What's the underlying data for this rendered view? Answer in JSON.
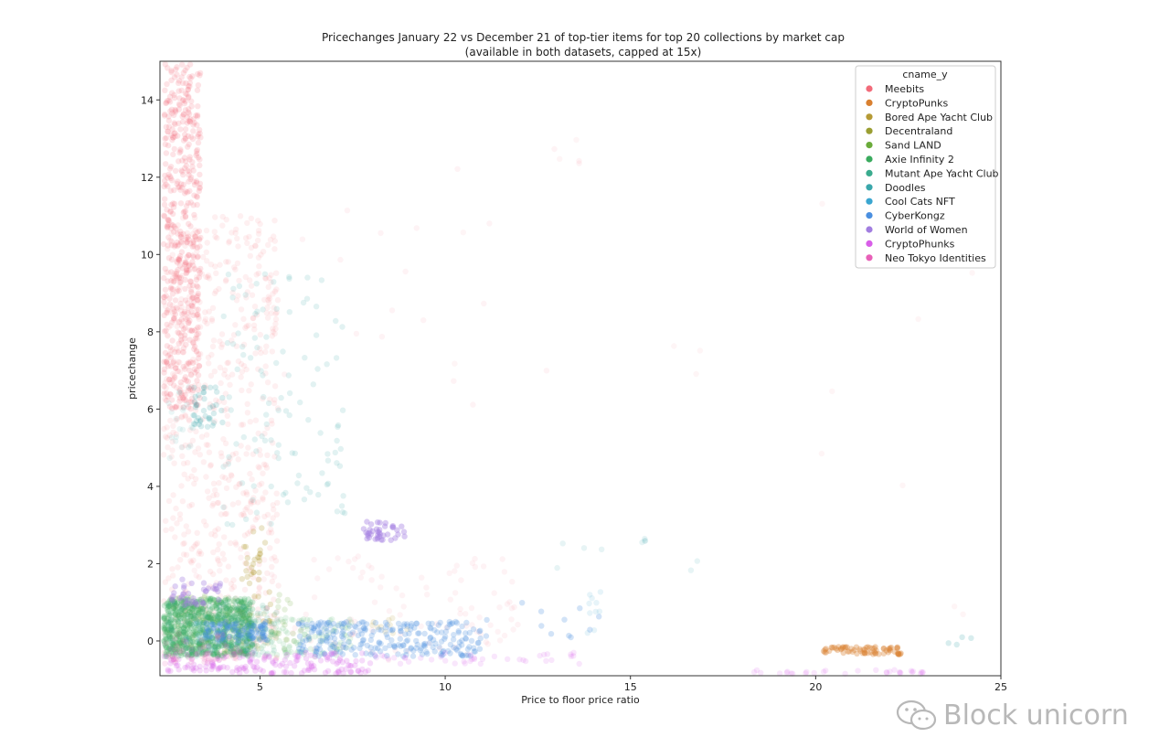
{
  "chart_data": {
    "type": "scatter",
    "title": "Pricechanges January 22 vs December 21 of top-tier items for top 20 collections by market cap",
    "subtitle": "(available in both datasets, capped at 15x)",
    "xlabel": "Price to floor price ratio",
    "ylabel": "pricechange",
    "xlim": [
      2.3,
      25
    ],
    "ylim": [
      -0.9,
      15
    ],
    "xticks": [
      5,
      10,
      15,
      20,
      25
    ],
    "yticks": [
      0,
      2,
      4,
      6,
      8,
      10,
      12,
      14
    ],
    "grid": false,
    "legend": {
      "title": "cname_y",
      "placement": "top-right"
    },
    "series": [
      {
        "name": "Meebits",
        "color": "#f26b7a",
        "clusters": [
          {
            "x": [
              2.4,
              3.4
            ],
            "y": [
              6,
              15
            ],
            "n": 520,
            "a": 0.18
          },
          {
            "x": [
              2.4,
              5.5
            ],
            "y": [
              -0.5,
              11
            ],
            "n": 650,
            "a": 0.1
          },
          {
            "x": [
              3.0,
              12
            ],
            "y": [
              -0.5,
              2.2
            ],
            "n": 120,
            "a": 0.08
          },
          {
            "x": [
              5,
              14
            ],
            "y": [
              6,
              13
            ],
            "n": 20,
            "a": 0.08
          },
          {
            "x": [
              10,
              25
            ],
            "y": [
              -0.5,
              15
            ],
            "n": 16,
            "a": 0.07
          }
        ]
      },
      {
        "name": "CryptoPunks",
        "color": "#d98030",
        "clusters": [
          {
            "x": [
              20.2,
              22.3
            ],
            "y": [
              -0.35,
              -0.15
            ],
            "n": 70,
            "a": 0.35
          }
        ]
      },
      {
        "name": "Bored Ape Yacht Club",
        "color": "#b59a35",
        "clusters": [
          {
            "x": [
              4.5,
              5.3
            ],
            "y": [
              0.5,
              3.1
            ],
            "n": 35,
            "a": 0.25
          },
          {
            "x": [
              8.0,
              9.0
            ],
            "y": [
              0.2,
              0.6
            ],
            "n": 10,
            "a": 0.15
          }
        ]
      },
      {
        "name": "Decentraland",
        "color": "#9a9e32",
        "clusters": [
          {
            "x": [
              2.5,
              5.5
            ],
            "y": [
              -0.3,
              0.8
            ],
            "n": 60,
            "a": 0.15
          }
        ]
      },
      {
        "name": "Sand LAND",
        "color": "#6aab3a",
        "clusters": [
          {
            "x": [
              2.5,
              6.0
            ],
            "y": [
              -0.3,
              1.2
            ],
            "n": 80,
            "a": 0.16
          }
        ]
      },
      {
        "name": "Axie Infinity 2",
        "color": "#3aab5e",
        "clusters": [
          {
            "x": [
              2.4,
              4.8
            ],
            "y": [
              -0.4,
              1.1
            ],
            "n": 800,
            "a": 0.22
          },
          {
            "x": [
              4.5,
              7.5
            ],
            "y": [
              -0.4,
              0.6
            ],
            "n": 120,
            "a": 0.12
          }
        ]
      },
      {
        "name": "Mutant Ape Yacht Club",
        "color": "#3aab8e",
        "clusters": [
          {
            "x": [
              2.5,
              5.5
            ],
            "y": [
              -0.4,
              1.0
            ],
            "n": 140,
            "a": 0.15
          }
        ]
      },
      {
        "name": "Doodles",
        "color": "#3aa7ab",
        "clusters": [
          {
            "x": [
              4.0,
              7.3
            ],
            "y": [
              3.0,
              9.5
            ],
            "n": 110,
            "a": 0.15
          },
          {
            "x": [
              3.2,
              4.0
            ],
            "y": [
              5.5,
              6.6
            ],
            "n": 40,
            "a": 0.2
          },
          {
            "x": [
              2.5,
              3.2
            ],
            "y": [
              4.5,
              6.6
            ],
            "n": 20,
            "a": 0.1
          },
          {
            "x": [
              13,
              17
            ],
            "y": [
              1.5,
              3.0
            ],
            "n": 10,
            "a": 0.12
          },
          {
            "x": [
              23.5,
              24.3
            ],
            "y": [
              -0.1,
              0.1
            ],
            "n": 4,
            "a": 0.2
          }
        ]
      },
      {
        "name": "Cool Cats NFT",
        "color": "#3aa6d0",
        "clusters": [
          {
            "x": [
              3.0,
              5.0
            ],
            "y": [
              -0.3,
              0.5
            ],
            "n": 60,
            "a": 0.14
          },
          {
            "x": [
              13.8,
              14.2
            ],
            "y": [
              0.2,
              1.6
            ],
            "n": 10,
            "a": 0.12
          }
        ]
      },
      {
        "name": "CyberKongz",
        "color": "#4a8fe0",
        "clusters": [
          {
            "x": [
              3.5,
              5.2
            ],
            "y": [
              0.0,
              0.5
            ],
            "n": 80,
            "a": 0.3
          },
          {
            "x": [
              6.0,
              11.0
            ],
            "y": [
              -0.4,
              0.5
            ],
            "n": 260,
            "a": 0.25
          },
          {
            "x": [
              11.0,
              14.2
            ],
            "y": [
              0.0,
              1.0
            ],
            "n": 12,
            "a": 0.25
          }
        ]
      },
      {
        "name": "World of Women",
        "color": "#a27ee0",
        "clusters": [
          {
            "x": [
              7.8,
              9.0
            ],
            "y": [
              2.6,
              3.1
            ],
            "n": 40,
            "a": 0.4
          },
          {
            "x": [
              2.6,
              4.0
            ],
            "y": [
              0.9,
              1.6
            ],
            "n": 40,
            "a": 0.35
          }
        ]
      },
      {
        "name": "CryptoPhunks",
        "color": "#d85ee8",
        "clusters": [
          {
            "x": [
              2.4,
              8.0
            ],
            "y": [
              -0.85,
              -0.3
            ],
            "n": 160,
            "a": 0.22
          },
          {
            "x": [
              8.0,
              14.0
            ],
            "y": [
              -0.6,
              -0.3
            ],
            "n": 40,
            "a": 0.15
          },
          {
            "x": [
              18.0,
              23.0
            ],
            "y": [
              -0.85,
              -0.75
            ],
            "n": 30,
            "a": 0.15
          }
        ]
      },
      {
        "name": "Neo Tokyo Identities",
        "color": "#e860b8",
        "clusters": [
          {
            "x": [
              2.4,
              4.5
            ],
            "y": [
              -0.6,
              0.2
            ],
            "n": 50,
            "a": 0.15
          }
        ]
      }
    ]
  },
  "watermark": {
    "text": "Block unicorn",
    "icon": "wechat-icon"
  }
}
